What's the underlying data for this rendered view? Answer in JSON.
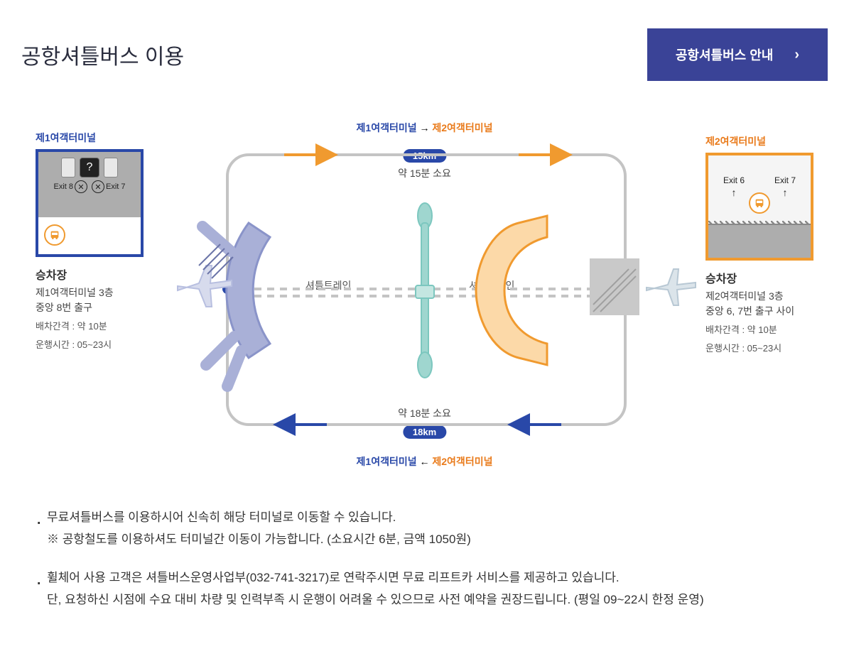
{
  "page_title": "공항셔틀버스 이용",
  "button_label": "공항셔틀버스 안내",
  "colors": {
    "blue": "#2948a8",
    "orange": "#f09a2f",
    "orange_text": "#e97a1a",
    "button_bg": "#3a4397",
    "gray": "#adadad",
    "teal": "#7cc7bf",
    "lilac": "#a9b0d7"
  },
  "diagram": {
    "top_route": {
      "from": "제1여객터미널",
      "to": "제2여객터미널",
      "arrow": "→",
      "distance": "15km",
      "time": "약 15분 소요",
      "arrow_color": "#f09a2f"
    },
    "bottom_route": {
      "from": "제1여객터미널",
      "to": "제2여객터미널",
      "arrow": "←",
      "distance": "18km",
      "time": "약 18분 소요",
      "arrow_color": "#2948a8"
    },
    "shuttle_train": "셔틀트레인"
  },
  "terminal1": {
    "title": "제1여객터미널",
    "exit_a": "Exit 8",
    "exit_b": "Exit 7",
    "stop_title": "승차장",
    "stop_line1": "제1여객터미널 3층",
    "stop_line2": "중앙 8번 출구",
    "interval": "배차간격 : 약 10분",
    "hours": "운행시간 : 05~23시"
  },
  "terminal2": {
    "title": "제2여객터미널",
    "exit_a": "Exit 6",
    "exit_b": "Exit 7",
    "stop_title": "승차장",
    "stop_line1": "제2여객터미널 3층",
    "stop_line2": "중앙 6, 7번 출구 사이",
    "interval": "배차간격 : 약 10분",
    "hours": "운행시간 : 05~23시"
  },
  "notes": [
    "무료셔틀버스를 이용하시어 신속히 해당 터미널로 이동할 수 있습니다.\n※ 공항철도를 이용하셔도 터미널간 이동이 가능합니다. (소요시간 6분, 금액 1050원)",
    "휠체어 사용 고객은 셔틀버스운영사업부(032-741-3217)로 연락주시면 무료 리프트카 서비스를 제공하고 있습니다.\n단, 요청하신 시점에 수요 대비 차량 및 인력부족 시 운행이 어려울 수 있으므로 사전 예약을 권장드립니다. (평일 09~22시 한정 운영)"
  ]
}
